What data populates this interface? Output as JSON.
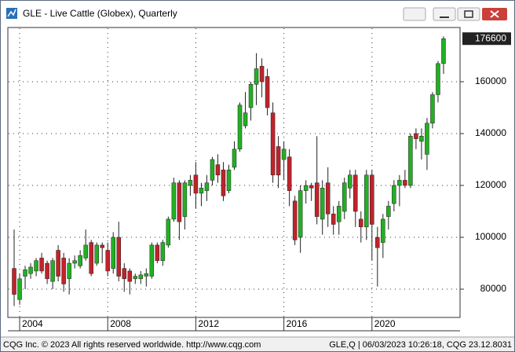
{
  "chart_data": {
    "type": "candlestick",
    "title": "GLE - Live Cattle (Globex), Quarterly",
    "footer_left": "CQG Inc. © 2023 All rights reserved worldwide. http://www.cqg.com",
    "footer_right": "GLE,Q | 06/03/2023 10:26:18, CQG 23.12.8031",
    "x": [
      2003.75,
      2004,
      2004.25,
      2004.5,
      2004.75,
      2005,
      2005.25,
      2005.5,
      2005.75,
      2006,
      2006.25,
      2006.5,
      2006.75,
      2007,
      2007.25,
      2007.5,
      2007.75,
      2008,
      2008.25,
      2008.5,
      2008.75,
      2009,
      2009.25,
      2009.5,
      2009.75,
      2010,
      2010.25,
      2010.5,
      2010.75,
      2011,
      2011.25,
      2011.5,
      2011.75,
      2012,
      2012.25,
      2012.5,
      2012.75,
      2013,
      2013.25,
      2013.5,
      2013.75,
      2014,
      2014.25,
      2014.5,
      2014.75,
      2015,
      2015.25,
      2015.5,
      2015.75,
      2016,
      2016.25,
      2016.5,
      2016.75,
      2017,
      2017.25,
      2017.5,
      2017.75,
      2018,
      2018.25,
      2018.5,
      2018.75,
      2019,
      2019.25,
      2019.5,
      2019.75,
      2020,
      2020.25,
      2020.5,
      2020.75,
      2021,
      2021.25,
      2021.5,
      2021.75,
      2022,
      2022.25,
      2022.5,
      2022.75,
      2023,
      2023.25
    ],
    "open": [
      88000,
      76000,
      85000,
      86000,
      87000,
      92000,
      90000,
      83000,
      95000,
      92000,
      84000,
      90000,
      89000,
      92000,
      98000,
      90000,
      97000,
      95000,
      88000,
      100000,
      88000,
      87000,
      84000,
      84000,
      85000,
      85000,
      97000,
      91000,
      97000,
      107000,
      121000,
      108000,
      120000,
      124000,
      117000,
      118000,
      122000,
      128000,
      126000,
      118000,
      127000,
      134000,
      143000,
      150000,
      159000,
      166000,
      162000,
      148000,
      135000,
      130000,
      131000,
      114000,
      100000,
      118000,
      120000,
      121000,
      107000,
      121000,
      109000,
      106000,
      110000,
      119000,
      124000,
      107000,
      104000,
      124000,
      100000,
      98000,
      108000,
      113000,
      120000,
      122000,
      120000,
      140000,
      137000,
      132000,
      144000,
      155000,
      167000
    ],
    "high": [
      103000,
      86000,
      89000,
      90000,
      92000,
      94000,
      91000,
      92000,
      97000,
      94000,
      92000,
      93000,
      95000,
      103000,
      99000,
      98000,
      98000,
      98000,
      102000,
      106000,
      90000,
      88000,
      86000,
      87000,
      88000,
      98000,
      98000,
      99000,
      108000,
      123000,
      122000,
      122000,
      124000,
      129000,
      121000,
      124000,
      131000,
      132000,
      129000,
      128000,
      137000,
      152000,
      156000,
      160000,
      171000,
      169000,
      165000,
      152000,
      139000,
      137000,
      134000,
      116000,
      120000,
      122000,
      121000,
      139000,
      122000,
      127000,
      112000,
      114000,
      123000,
      126000,
      126000,
      110000,
      126000,
      126000,
      104000,
      109000,
      114000,
      122000,
      124000,
      126000,
      140000,
      142000,
      142000,
      146000,
      156000,
      168000,
      177500
    ],
    "low": [
      73500,
      74000,
      80000,
      84000,
      85000,
      86000,
      82000,
      80000,
      83000,
      79000,
      78000,
      88000,
      88000,
      91000,
      85000,
      89000,
      90000,
      85000,
      86000,
      83000,
      79000,
      78000,
      82000,
      82000,
      81000,
      84000,
      90000,
      89000,
      96000,
      106000,
      99000,
      103000,
      116000,
      111000,
      112000,
      114000,
      120000,
      121000,
      114000,
      117000,
      126000,
      133000,
      142000,
      145000,
      151000,
      154000,
      147000,
      121000,
      119000,
      122000,
      112000,
      97000,
      94000,
      113000,
      114000,
      105000,
      101000,
      104000,
      101000,
      101000,
      107000,
      115000,
      104000,
      98000,
      99000,
      91000,
      81000,
      92000,
      103000,
      110000,
      112000,
      119000,
      119000,
      134000,
      130000,
      126000,
      142000,
      152000,
      163000
    ],
    "close": [
      78000,
      84000,
      87500,
      88500,
      91000,
      87000,
      84000,
      91000,
      85000,
      82000,
      90000,
      91000,
      93000,
      97000,
      86000,
      97000,
      96000,
      87000,
      100000,
      85000,
      84000,
      83000,
      85000,
      85500,
      86000,
      97000,
      91000,
      98000,
      107000,
      121000,
      106000,
      121000,
      122000,
      117000,
      119000,
      121000,
      130000,
      124000,
      116000,
      126000,
      134000,
      151000,
      148000,
      159000,
      165000,
      160000,
      150000,
      124000,
      124000,
      134000,
      118000,
      99000,
      118000,
      120000,
      119000,
      108000,
      119000,
      109000,
      105000,
      112000,
      121000,
      124000,
      110000,
      104000,
      124000,
      105000,
      96000,
      107000,
      112000,
      120000,
      122000,
      120000,
      139000,
      138000,
      139000,
      144000,
      155000,
      167000,
      176600
    ],
    "up_color": "#22b022",
    "down_color": "#c0232a",
    "xlim": [
      2003.5,
      2024.0
    ],
    "xticks": [
      2004,
      2008,
      2012,
      2016,
      2020
    ],
    "ylim": [
      69100,
      180600
    ],
    "yticks": [
      80000,
      100000,
      120000,
      140000,
      160000
    ],
    "grid": true
  }
}
